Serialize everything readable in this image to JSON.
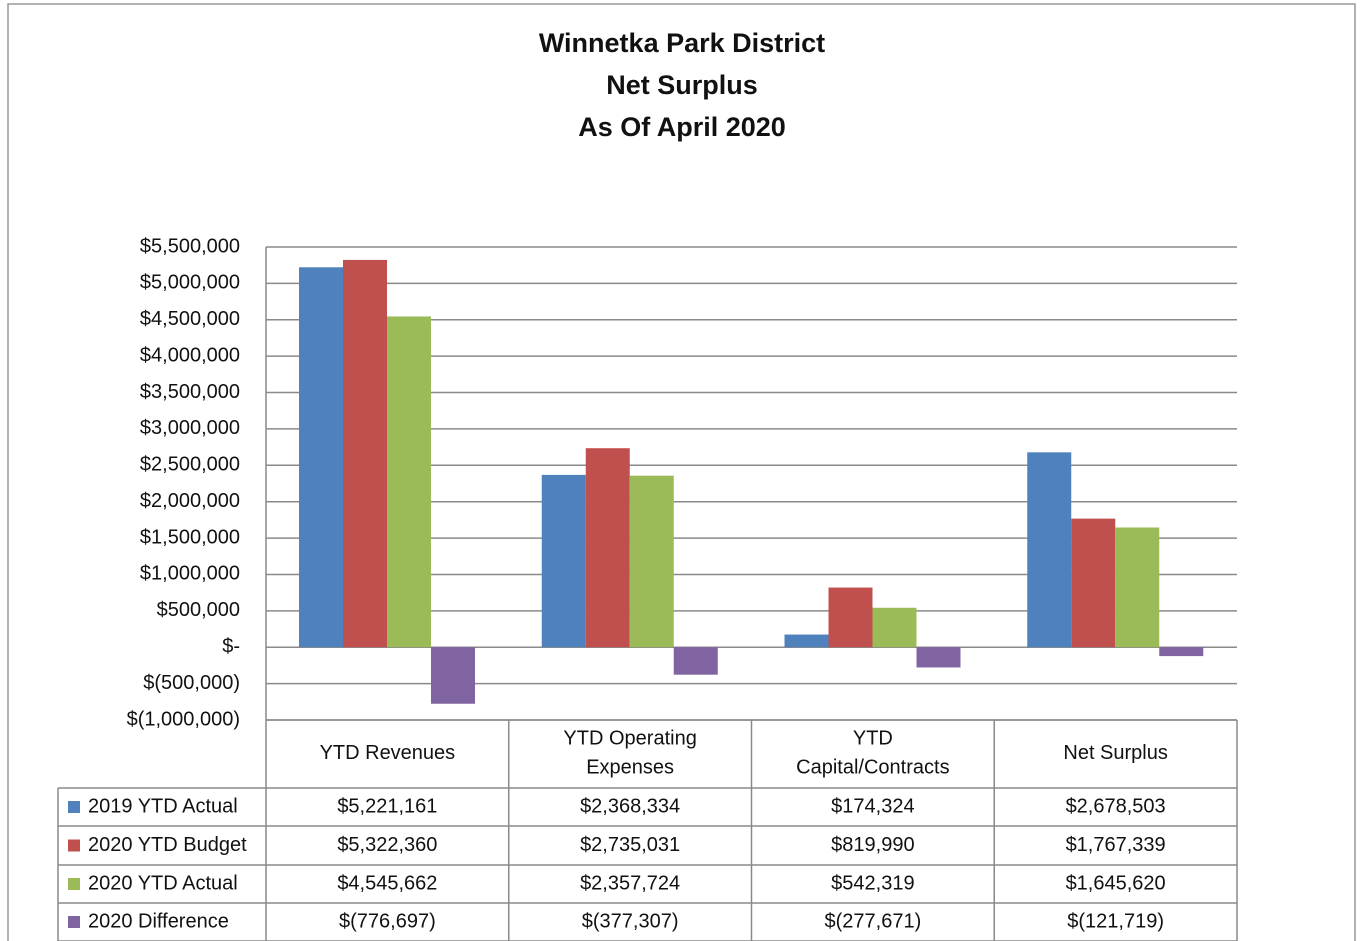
{
  "chart_data": {
    "type": "bar",
    "title": [
      "Winnetka Park District",
      "Net Surplus",
      "As Of April 2020"
    ],
    "categories": [
      "YTD Revenues",
      "YTD Operating\nExpenses",
      "YTD\nCapital/Contracts",
      "Net Surplus"
    ],
    "series": [
      {
        "name": "2019 YTD Actual",
        "color": "#4f81bd",
        "values": [
          5221161,
          2368334,
          174324,
          2678503
        ],
        "value_labels": [
          "$5,221,161",
          "$2,368,334",
          "$174,324",
          "$2,678,503"
        ]
      },
      {
        "name": "2020 YTD Budget",
        "color": "#c0504d",
        "values": [
          5322360,
          2735031,
          819990,
          1767339
        ],
        "value_labels": [
          "$5,322,360",
          "$2,735,031",
          "$819,990",
          "$1,767,339"
        ]
      },
      {
        "name": "2020 YTD Actual",
        "color": "#9bbb59",
        "values": [
          4545662,
          2357724,
          542319,
          1645620
        ],
        "value_labels": [
          "$4,545,662",
          "$2,357,724",
          "$542,319",
          "$1,645,620"
        ]
      },
      {
        "name": "2020 Difference",
        "color": "#8064a2",
        "values": [
          -776697,
          -377307,
          -277671,
          -121719
        ],
        "value_labels": [
          "$(776,697)",
          "$(377,307)",
          "$(277,671)",
          "$(121,719)"
        ]
      }
    ],
    "ylim": [
      -1000000,
      5500000
    ],
    "yticks": [
      {
        "value": -1000000,
        "label": "$(1,000,000)"
      },
      {
        "value": -500000,
        "label": "$(500,000)"
      },
      {
        "value": 0,
        "label": "$-"
      },
      {
        "value": 500000,
        "label": "$500,000"
      },
      {
        "value": 1000000,
        "label": "$1,000,000"
      },
      {
        "value": 1500000,
        "label": "$1,500,000"
      },
      {
        "value": 2000000,
        "label": "$2,000,000"
      },
      {
        "value": 2500000,
        "label": "$2,500,000"
      },
      {
        "value": 3000000,
        "label": "$3,000,000"
      },
      {
        "value": 3500000,
        "label": "$3,500,000"
      },
      {
        "value": 4000000,
        "label": "$4,000,000"
      },
      {
        "value": 4500000,
        "label": "$4,500,000"
      },
      {
        "value": 5000000,
        "label": "$5,000,000"
      },
      {
        "value": 5500000,
        "label": "$5,500,000"
      }
    ],
    "grid": true
  }
}
